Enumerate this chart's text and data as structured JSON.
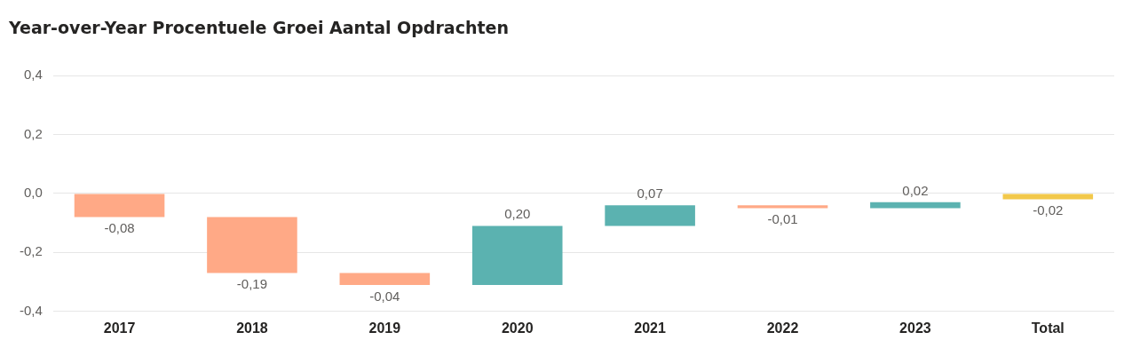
{
  "chart_data": {
    "type": "bar",
    "title": "Year-over-Year Procentuele Groei Aantal Opdrachten",
    "categories": [
      "2017",
      "2018",
      "2019",
      "2020",
      "2021",
      "2022",
      "2023",
      "Total"
    ],
    "values": [
      -0.08,
      -0.19,
      -0.04,
      0.2,
      0.07,
      -0.01,
      0.02,
      -0.02
    ],
    "base": [
      0,
      -0.08,
      -0.27,
      -0.31,
      -0.11,
      -0.04,
      -0.05,
      0
    ],
    "colors": [
      "#ffa986",
      "#ffa986",
      "#ffa986",
      "#5bb2b0",
      "#5bb2b0",
      "#ffa986",
      "#5bb2b0",
      "#f2c84b"
    ],
    "value_labels": [
      "-0,08",
      "-0,19",
      "-0,04",
      "0,20",
      "0,07",
      "-0,01",
      "0,02",
      "-0,02"
    ],
    "ylim": [
      -0.4,
      0.4
    ],
    "yticks": [
      {
        "value": -0.4,
        "label": "-0,4"
      },
      {
        "value": -0.2,
        "label": "-0,2"
      },
      {
        "value": 0,
        "label": "0,0"
      },
      {
        "value": 0.2,
        "label": "0,2"
      },
      {
        "value": 0.4,
        "label": "0,4"
      }
    ],
    "grid": "y",
    "legend": false
  }
}
